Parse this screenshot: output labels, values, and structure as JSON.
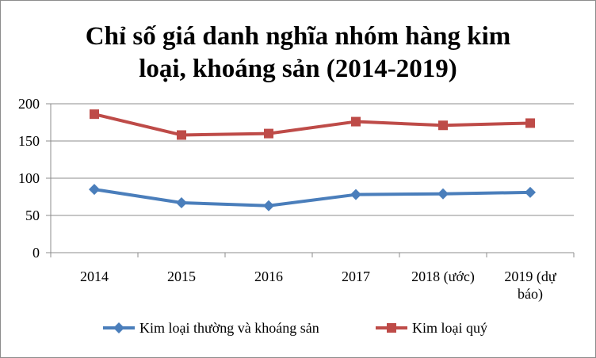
{
  "chart_data": {
    "type": "line",
    "title": "Chỉ số giá danh nghĩa nhóm hàng kim loại, khoáng sản (2014-2019)",
    "title_lines": [
      "Chỉ số giá danh nghĩa nhóm hàng kim",
      "loại, khoáng sản (2014-2019)"
    ],
    "categories": [
      "2014",
      "2015",
      "2016",
      "2017",
      "2018 (ước)",
      "2019 (dự báo)"
    ],
    "category_lines": [
      [
        "2014"
      ],
      [
        "2015"
      ],
      [
        "2016"
      ],
      [
        "2017"
      ],
      [
        "2018 (ước)"
      ],
      [
        "2019 (dự",
        "báo)"
      ]
    ],
    "y_ticks": [
      0,
      50,
      100,
      150,
      200
    ],
    "ylim": [
      0,
      200
    ],
    "grid": true,
    "legend_position": "bottom",
    "series": [
      {
        "name": "Kim loại thường và khoáng sản",
        "values": [
          85,
          67,
          63,
          78,
          79,
          81
        ],
        "color": "#4a7ebb",
        "marker": "diamond"
      },
      {
        "name": "Kim loại quý",
        "values": [
          186,
          158,
          160,
          176,
          171,
          174
        ],
        "color": "#be4b48",
        "marker": "square"
      }
    ]
  }
}
